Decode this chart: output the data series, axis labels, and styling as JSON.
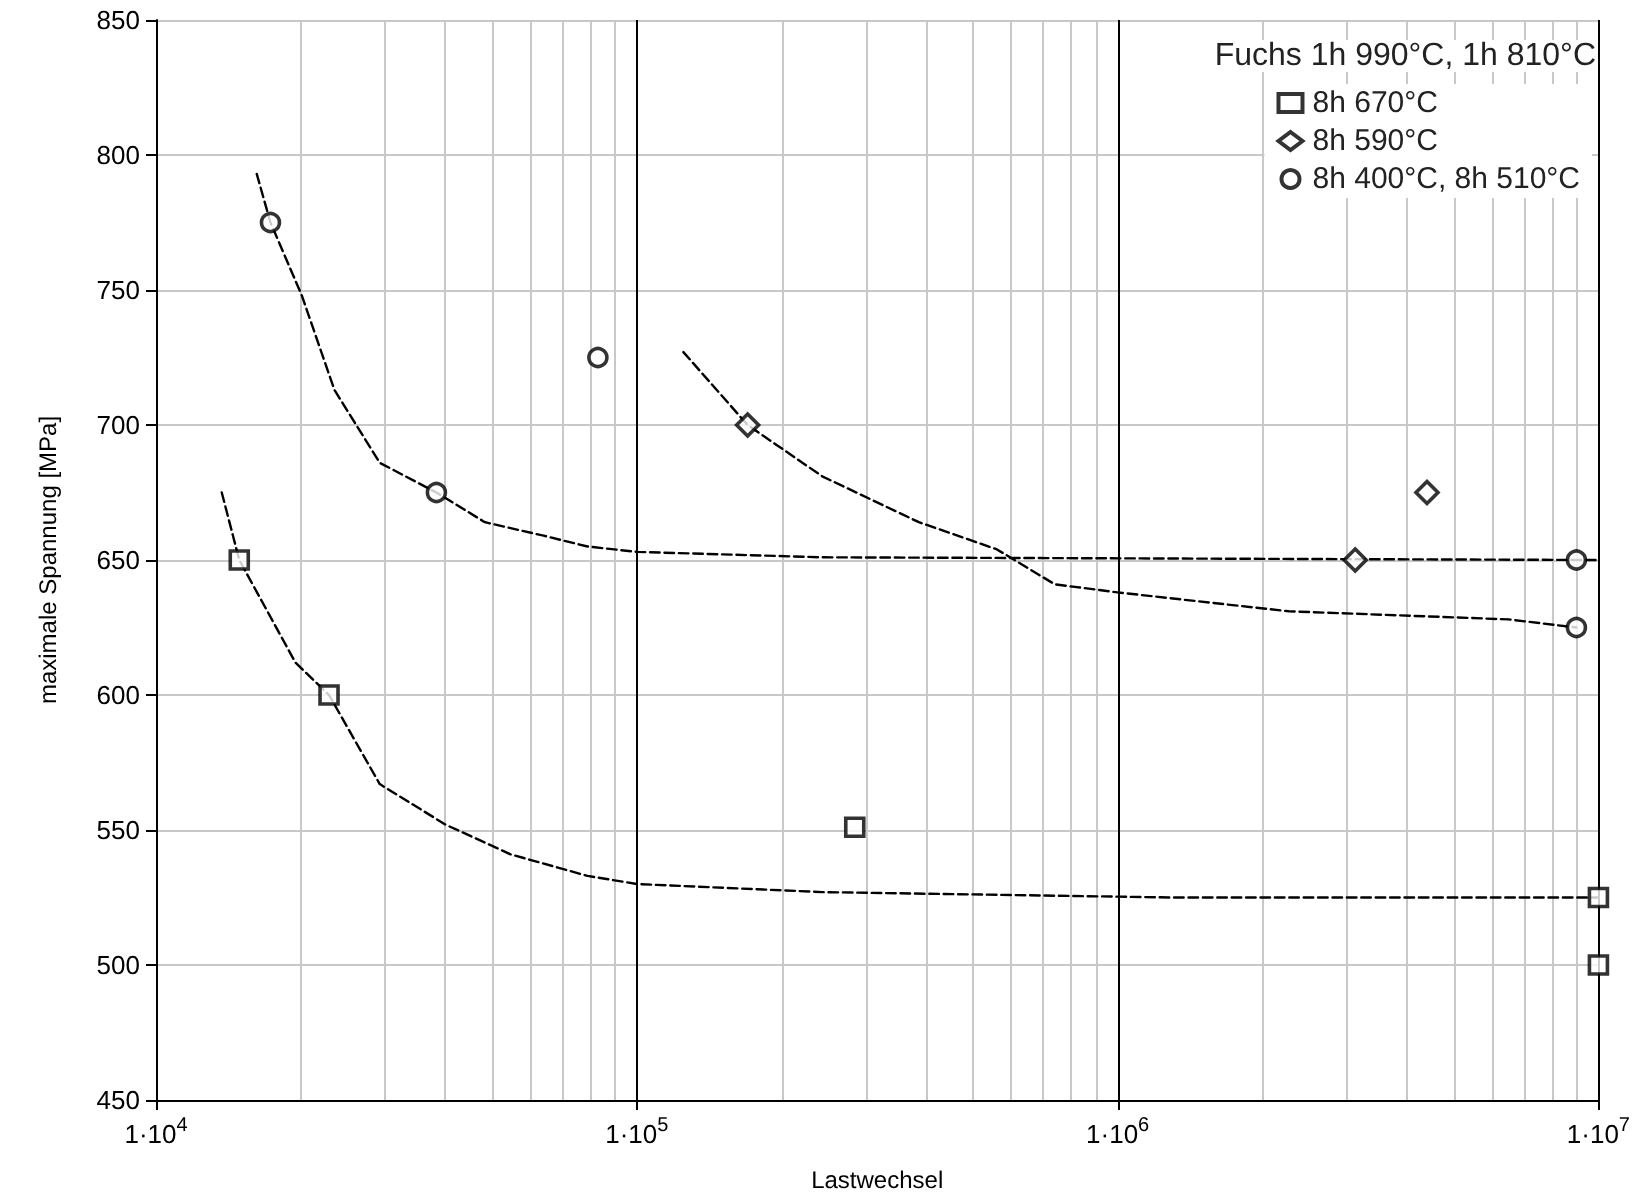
{
  "chart_data": {
    "type": "scatter",
    "xlabel": "Lastwechsel",
    "ylabel": "maximale Spannung [MPa]",
    "legend_title": "Fuchs 1h 990°C, 1h 810°C",
    "legend": "top right",
    "grid": true,
    "log": "x",
    "xlim": [
      10000,
      10000000
    ],
    "xticks": [
      {
        "value": 10000,
        "label": "1·10$^{4}$"
      },
      {
        "value": 100000,
        "label": "1·10$^{5}$"
      },
      {
        "value": 1000000,
        "label": "1·10$^{6}$"
      },
      {
        "value": 10000000,
        "label": "1·10$^{7}$"
      }
    ],
    "ylim": [
      450,
      850
    ],
    "yticks": [
      450,
      500,
      550,
      600,
      650,
      700,
      750,
      800,
      850
    ],
    "series": [
      {
        "name": "8h 670°C",
        "type": "scatter",
        "marker": "square",
        "color": "#000000",
        "x": [
          14900,
          22900,
          284000,
          10000000,
          10000000
        ],
        "values": [
          650,
          600,
          551,
          525,
          500
        ]
      },
      {
        "name": "8h 590°C",
        "type": "scatter",
        "marker": "diamond",
        "color": "#000000",
        "x": [
          170000,
          3120000,
          4400000
        ],
        "values": [
          700,
          650,
          675
        ]
      },
      {
        "name": "8h 400°C, 8h 510°C",
        "type": "scatter",
        "marker": "circle",
        "color": "#000000",
        "x": [
          17300,
          38300,
          83000,
          9000000,
          9000000
        ],
        "values": [
          775,
          675,
          725,
          650,
          625
        ]
      },
      {
        "type": "line",
        "marker": "none",
        "line_style": "dashed",
        "color": "#000000",
        "x": [
          13700,
          14900,
          19500,
          22900,
          29200,
          40000,
          54600,
          79000,
          100000,
          243000,
          1300000,
          10000000
        ],
        "values": [
          675,
          650,
          612,
          600,
          567,
          552,
          541,
          533,
          530,
          527,
          525,
          525
        ]
      },
      {
        "type": "line",
        "marker": "none",
        "line_style": "dashed",
        "color": "#000000",
        "x": [
          16200,
          17300,
          20100,
          23500,
          29200,
          38300,
          48300,
          64000,
          79000,
          100000,
          243000,
          10000000
        ],
        "values": [
          793,
          775,
          748,
          713,
          686,
          675,
          664,
          659,
          655,
          653,
          651,
          650
        ]
      },
      {
        "type": "line",
        "marker": "none",
        "line_style": "dashed",
        "color": "#000000",
        "x": [
          125000,
          170000,
          243000,
          386000,
          560000,
          740000,
          1000000,
          2270000,
          6500000,
          9000000
        ],
        "values": [
          727,
          700,
          681,
          664,
          654,
          641,
          638,
          631,
          628,
          625
        ]
      }
    ]
  }
}
